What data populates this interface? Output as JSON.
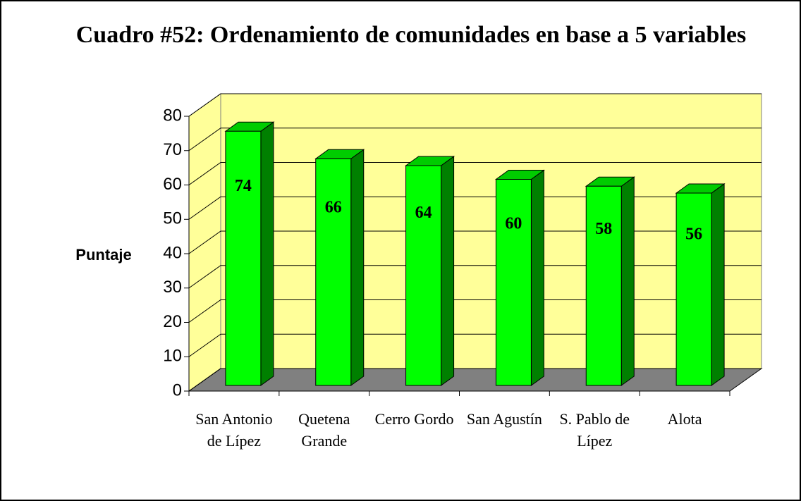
{
  "chart_data": {
    "type": "bar3d",
    "title": "Cuadro #52: Ordenamiento de comunidades en base a 5 variables",
    "y_label": "Puntaje",
    "categories": [
      "San Antonio de Lípez",
      "Quetena Grande",
      "Cerro Gordo",
      "San Agustín",
      "S. Pablo de Lípez",
      "Alota"
    ],
    "values": [
      74,
      66,
      64,
      60,
      58,
      56
    ],
    "color": "#00ff00",
    "ylim": [
      0,
      80
    ],
    "yticks": [
      0,
      10,
      20,
      30,
      40,
      50,
      60,
      70,
      80
    ],
    "grid": true
  }
}
